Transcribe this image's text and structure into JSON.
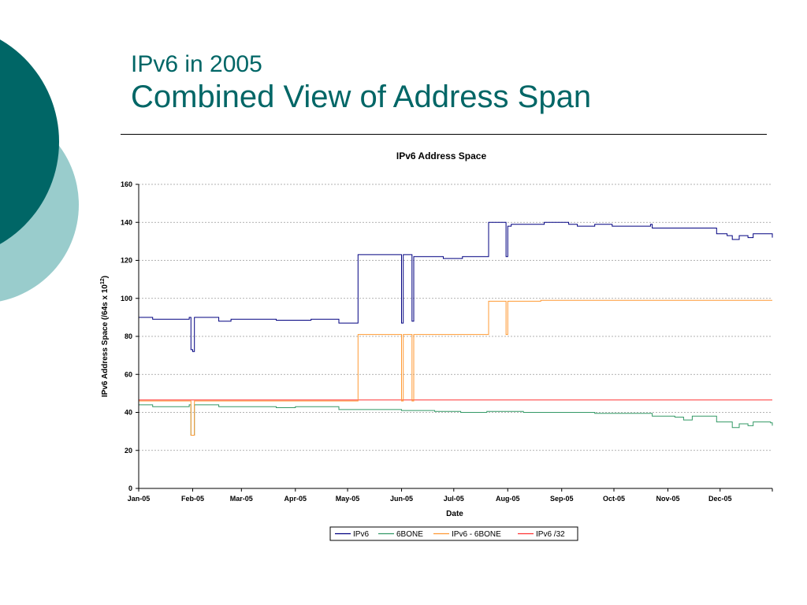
{
  "slide": {
    "title_line1": "IPv6 in 2005",
    "title_line2": "Combined View of Address Span"
  },
  "colors": {
    "theme_dark": "#006666",
    "theme_light": "#99CCCC",
    "accent": "#006666"
  },
  "chart_data": {
    "type": "line",
    "title": "IPv6 Address Space",
    "xlabel": "Date",
    "ylabel": "IPv6 Address Space (/64s x 10^12)",
    "ylabel_parts": [
      "IPv6 Address Space (/64s x 10",
      "12",
      ")"
    ],
    "xlim": [
      "2005-01-01",
      "2005-12-31"
    ],
    "ylim": [
      0,
      160
    ],
    "y_ticks": [
      "0",
      "20",
      "40",
      "60",
      "80",
      "100",
      "120",
      "140",
      "160"
    ],
    "x_ticks": [
      "Jan-05",
      "Feb-05",
      "Mar-05",
      "Apr-05",
      "May-05",
      "Jun-05",
      "Jul-05",
      "Aug-05",
      "Sep-05",
      "Oct-05",
      "Nov-05",
      "Dec-05"
    ],
    "grid": true,
    "legend_position": "bottom",
    "series": [
      {
        "name": "IPv6",
        "color": "#000080",
        "step": true,
        "points": [
          [
            "2005-01-01",
            90
          ],
          [
            "2005-01-08",
            90
          ],
          [
            "2005-01-09",
            89
          ],
          [
            "2005-01-29",
            89
          ],
          [
            "2005-01-30",
            90
          ],
          [
            "2005-01-31",
            73
          ],
          [
            "2005-02-01",
            72
          ],
          [
            "2005-02-02",
            90
          ],
          [
            "2005-02-15",
            90
          ],
          [
            "2005-02-16",
            88
          ],
          [
            "2005-02-22",
            88
          ],
          [
            "2005-02-23",
            89
          ],
          [
            "2005-03-20",
            89
          ],
          [
            "2005-03-21",
            88.5
          ],
          [
            "2005-04-10",
            89
          ],
          [
            "2005-04-25",
            89
          ],
          [
            "2005-04-26",
            87
          ],
          [
            "2005-05-06",
            87
          ],
          [
            "2005-05-07",
            123
          ],
          [
            "2005-05-31",
            123
          ],
          [
            "2005-06-01",
            87
          ],
          [
            "2005-06-02",
            123
          ],
          [
            "2005-06-06",
            123
          ],
          [
            "2005-06-07",
            88
          ],
          [
            "2005-06-08",
            122
          ],
          [
            "2005-06-25",
            121
          ],
          [
            "2005-07-05",
            121
          ],
          [
            "2005-07-06",
            122
          ],
          [
            "2005-07-20",
            122
          ],
          [
            "2005-07-21",
            140
          ],
          [
            "2005-07-30",
            140
          ],
          [
            "2005-07-31",
            122
          ],
          [
            "2005-08-01",
            138
          ],
          [
            "2005-08-03",
            139
          ],
          [
            "2005-08-15",
            139
          ],
          [
            "2005-08-22",
            140
          ],
          [
            "2005-09-05",
            139
          ],
          [
            "2005-09-10",
            138
          ],
          [
            "2005-09-20",
            139
          ],
          [
            "2005-09-30",
            138
          ],
          [
            "2005-10-05",
            138
          ],
          [
            "2005-10-22",
            139
          ],
          [
            "2005-10-23",
            137
          ],
          [
            "2005-11-05",
            137
          ],
          [
            "2005-11-18",
            137
          ],
          [
            "2005-11-28",
            137
          ],
          [
            "2005-11-29",
            134
          ],
          [
            "2005-12-04",
            134
          ],
          [
            "2005-12-05",
            133
          ],
          [
            "2005-12-08",
            131
          ],
          [
            "2005-12-12",
            133
          ],
          [
            "2005-12-15",
            133
          ],
          [
            "2005-12-17",
            132
          ],
          [
            "2005-12-20",
            134
          ],
          [
            "2005-12-30",
            134
          ],
          [
            "2005-12-31",
            132
          ]
        ]
      },
      {
        "name": "6BONE",
        "color": "#339966",
        "step": true,
        "points": [
          [
            "2005-01-01",
            44
          ],
          [
            "2005-01-08",
            44
          ],
          [
            "2005-01-09",
            43
          ],
          [
            "2005-01-29",
            43
          ],
          [
            "2005-01-30",
            44
          ],
          [
            "2005-01-31",
            28
          ],
          [
            "2005-02-01",
            28
          ],
          [
            "2005-02-02",
            44
          ],
          [
            "2005-02-15",
            44
          ],
          [
            "2005-02-16",
            43
          ],
          [
            "2005-03-20",
            43
          ],
          [
            "2005-03-21",
            42.5
          ],
          [
            "2005-04-01",
            43
          ],
          [
            "2005-04-25",
            43
          ],
          [
            "2005-04-26",
            41.5
          ],
          [
            "2005-05-31",
            41.5
          ],
          [
            "2005-06-01",
            41
          ],
          [
            "2005-06-20",
            40.5
          ],
          [
            "2005-07-05",
            40
          ],
          [
            "2005-07-20",
            40.5
          ],
          [
            "2005-08-10",
            40
          ],
          [
            "2005-09-05",
            40
          ],
          [
            "2005-09-20",
            39.5
          ],
          [
            "2005-10-22",
            39.5
          ],
          [
            "2005-10-23",
            38
          ],
          [
            "2005-11-05",
            37.5
          ],
          [
            "2005-11-10",
            36
          ],
          [
            "2005-11-15",
            38
          ],
          [
            "2005-11-28",
            38
          ],
          [
            "2005-11-29",
            35
          ],
          [
            "2005-12-05",
            35
          ],
          [
            "2005-12-08",
            32
          ],
          [
            "2005-12-12",
            34
          ],
          [
            "2005-12-17",
            33
          ],
          [
            "2005-12-20",
            35
          ],
          [
            "2005-12-30",
            34.5
          ],
          [
            "2005-12-31",
            33
          ]
        ]
      },
      {
        "name": "IPv6 - 6BONE",
        "color": "#FF9933",
        "step": true,
        "points": [
          [
            "2005-01-01",
            46
          ],
          [
            "2005-01-30",
            46
          ],
          [
            "2005-01-31",
            28
          ],
          [
            "2005-02-01",
            28
          ],
          [
            "2005-02-02",
            46
          ],
          [
            "2005-05-06",
            46
          ],
          [
            "2005-05-07",
            81
          ],
          [
            "2005-05-31",
            81
          ],
          [
            "2005-06-01",
            46
          ],
          [
            "2005-06-02",
            81
          ],
          [
            "2005-06-06",
            81
          ],
          [
            "2005-06-07",
            46
          ],
          [
            "2005-06-08",
            81
          ],
          [
            "2005-07-20",
            81
          ],
          [
            "2005-07-21",
            98.5
          ],
          [
            "2005-07-30",
            98.5
          ],
          [
            "2005-07-31",
            81
          ],
          [
            "2005-08-01",
            98.5
          ],
          [
            "2005-08-20",
            99
          ],
          [
            "2005-10-01",
            99
          ],
          [
            "2005-12-31",
            99
          ]
        ]
      },
      {
        "name": "IPv6 /32",
        "color": "#FF3333",
        "step": true,
        "points": [
          [
            "2005-01-01",
            46.5
          ],
          [
            "2005-03-25",
            46.5
          ],
          [
            "2005-04-01",
            46.5
          ],
          [
            "2005-11-01",
            46.5
          ],
          [
            "2005-12-31",
            46.5
          ]
        ]
      }
    ]
  }
}
